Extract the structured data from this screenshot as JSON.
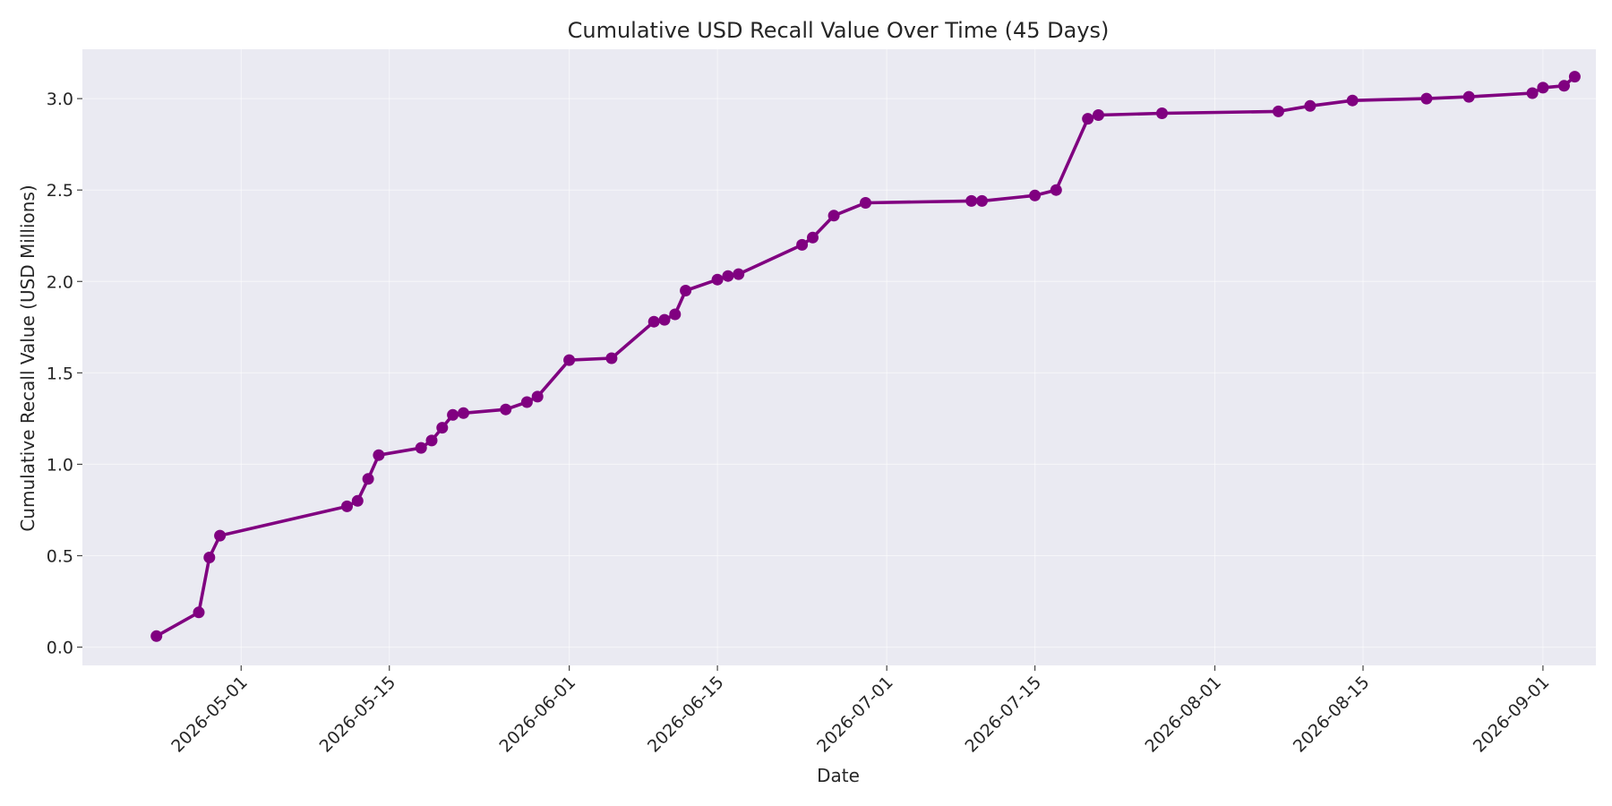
{
  "chart_data": {
    "type": "line",
    "title": "Cumulative USD Recall Value Over Time (45 Days)",
    "xlabel": "Date",
    "ylabel": "Cumulative Recall Value (USD Millions)",
    "x_axis_type": "date",
    "xlim": [
      "2026-04-16",
      "2026-09-06"
    ],
    "ylim": [
      -0.1,
      3.27
    ],
    "x_ticks": [
      "2026-05-01",
      "2026-05-15",
      "2026-06-01",
      "2026-06-15",
      "2026-07-01",
      "2026-07-15",
      "2026-08-01",
      "2026-08-15",
      "2026-09-01"
    ],
    "y_ticks": [
      0.0,
      0.5,
      1.0,
      1.5,
      2.0,
      2.5,
      3.0
    ],
    "y_tick_labels": [
      "0.0",
      "0.5",
      "1.0",
      "1.5",
      "2.0",
      "2.5",
      "3.0"
    ],
    "grid": true,
    "colors": {
      "series": "#800080",
      "plot_background": "#eaeaf2"
    },
    "series": [
      {
        "x": [
          "2026-04-23",
          "2026-04-27",
          "2026-04-28",
          "2026-04-29",
          "2026-05-11",
          "2026-05-12",
          "2026-05-13",
          "2026-05-14",
          "2026-05-18",
          "2026-05-19",
          "2026-05-20",
          "2026-05-21",
          "2026-05-22",
          "2026-05-26",
          "2026-05-28",
          "2026-05-29",
          "2026-06-01",
          "2026-06-05",
          "2026-06-09",
          "2026-06-10",
          "2026-06-11",
          "2026-06-12",
          "2026-06-15",
          "2026-06-16",
          "2026-06-17",
          "2026-06-23",
          "2026-06-24",
          "2026-06-26",
          "2026-06-29",
          "2026-07-09",
          "2026-07-10",
          "2026-07-15",
          "2026-07-17",
          "2026-07-20",
          "2026-07-21",
          "2026-07-27",
          "2026-08-07",
          "2026-08-10",
          "2026-08-14",
          "2026-08-21",
          "2026-08-25",
          "2026-08-31",
          "2026-09-01",
          "2026-09-03",
          "2026-09-04"
        ],
        "y": [
          0.06,
          0.19,
          0.49,
          0.61,
          0.77,
          0.8,
          0.92,
          1.05,
          1.09,
          1.13,
          1.2,
          1.27,
          1.28,
          1.3,
          1.34,
          1.37,
          1.57,
          1.58,
          1.78,
          1.79,
          1.82,
          1.95,
          2.01,
          2.03,
          2.04,
          2.2,
          2.24,
          2.36,
          2.43,
          2.44,
          2.44,
          2.47,
          2.5,
          2.89,
          2.91,
          2.92,
          2.93,
          2.96,
          2.99,
          3.0,
          3.01,
          3.03,
          3.06,
          3.07,
          3.12
        ]
      }
    ]
  }
}
